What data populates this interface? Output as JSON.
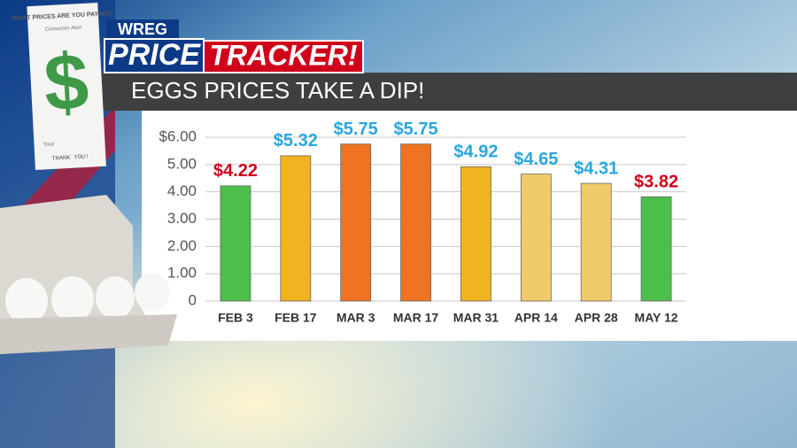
{
  "header": {
    "station": "WREG",
    "brand_left": "PRICE",
    "brand_right": "TRACKER!",
    "headline": "EGGS PRICES TAKE A DIP!"
  },
  "receipt": {
    "title": "WHAT PRICES ARE YOU PAYING?",
    "subtitle": "Consumer Alert",
    "symbol": "$",
    "total": "Total",
    "thanks": "THANK YOU!"
  },
  "chart_data": {
    "type": "bar",
    "categories": [
      "FEB 3",
      "FEB 17",
      "MAR 3",
      "MAR 17",
      "MAR 31",
      "APR 14",
      "APR 28",
      "MAY 12"
    ],
    "values": [
      4.22,
      5.32,
      5.75,
      5.75,
      4.92,
      4.65,
      4.31,
      3.82
    ],
    "value_labels": [
      "$4.22",
      "$5.32",
      "$5.75",
      "$5.75",
      "$4.92",
      "$4.65",
      "$4.31",
      "$3.82"
    ],
    "colors": [
      "#4cbf4a",
      "#f2b320",
      "#ef7322",
      "#ef7322",
      "#f2b320",
      "#f1cb6a",
      "#f1cb6a",
      "#4cbf4a"
    ],
    "label_colors": [
      "#d0021b",
      "#2aa6e0",
      "#2aa6e0",
      "#2aa6e0",
      "#2aa6e0",
      "#2aa6e0",
      "#2aa6e0",
      "#d0021b"
    ],
    "ylim": [
      0,
      6
    ],
    "yticks": [
      0,
      {
        "value": 1,
        "label": "1.00"
      },
      {
        "value": 2,
        "label": "2.00"
      },
      {
        "value": 3,
        "label": "3.00"
      },
      {
        "value": 4,
        "label": "4.00"
      },
      {
        "value": 5,
        "label": "5.00"
      },
      {
        "value": 6,
        "label": "$6.00"
      }
    ],
    "grid": true
  }
}
